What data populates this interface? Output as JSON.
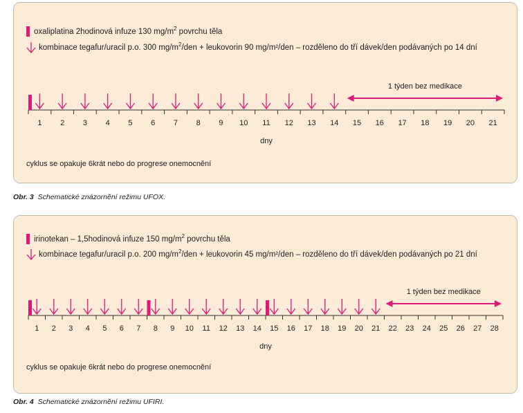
{
  "colors": {
    "accent": "#e0187a",
    "panel_bg": "#fcebd6",
    "axis": "#333333"
  },
  "figures": [
    {
      "legend_bar_pre": "oxaliplatina 2hodinová infuze 130 mg/m",
      "legend_bar_sup": "2",
      "legend_bar_post": " povrchu těla",
      "legend_arrow_pre": "kombinace tegafur/uracil p.o. 300 mg/m",
      "legend_arrow_sup": "2",
      "legend_arrow_post": "/den + leukovorin 90 mg/m²/den – rozděleno do tří dávek/den podávaných po 14 dní",
      "days": [
        "1",
        "2",
        "3",
        "4",
        "5",
        "6",
        "7",
        "8",
        "9",
        "10",
        "11",
        "12",
        "13",
        "14",
        "15",
        "16",
        "17",
        "18",
        "19",
        "20",
        "21"
      ],
      "bar_days": [
        1
      ],
      "arrow_days": [
        1,
        2,
        3,
        4,
        5,
        6,
        7,
        8,
        9,
        10,
        11,
        12,
        13,
        14
      ],
      "no_med_label": "1 týden bez medikace",
      "no_med_range": [
        15,
        21
      ],
      "axis_label": "dny",
      "cycle_note": "cyklus se opakuje 6krát nebo do progrese onemocnění",
      "caption_num": "Obr. 3",
      "caption_text": "Schematické znázornění režimu UFOX."
    },
    {
      "legend_bar_pre": "irinotekan – 1,5hodinová infuze 150 mg/m",
      "legend_bar_sup": "2",
      "legend_bar_post": " povrchu těla",
      "legend_arrow_pre": "kombinace tegafur/uracil p.o. 200 mg/m",
      "legend_arrow_sup": "2",
      "legend_arrow_post": "/den + leukovorin 45 mg/m²/den – rozděleno do tří dávek/den podávaných po 21 dní",
      "days": [
        "1",
        "2",
        "3",
        "4",
        "5",
        "6",
        "7",
        "8",
        "9",
        "10",
        "11",
        "12",
        "13",
        "14",
        "15",
        "16",
        "17",
        "18",
        "19",
        "20",
        "21",
        "22",
        "23",
        "24",
        "25",
        "26",
        "27",
        "28"
      ],
      "bar_days": [
        1,
        8,
        15
      ],
      "arrow_days": [
        1,
        2,
        3,
        4,
        5,
        6,
        7,
        8,
        9,
        10,
        11,
        12,
        13,
        14,
        15,
        16,
        17,
        18,
        19,
        20,
        21
      ],
      "no_med_label": "1 týden bez medikace",
      "no_med_range": [
        22,
        28
      ],
      "axis_label": "dny",
      "cycle_note": "cyklus se opakuje 6krát nebo do progrese onemocnění",
      "caption_num": "Obr. 4",
      "caption_text": "Schematické znázornění režimu UFIRI."
    }
  ]
}
